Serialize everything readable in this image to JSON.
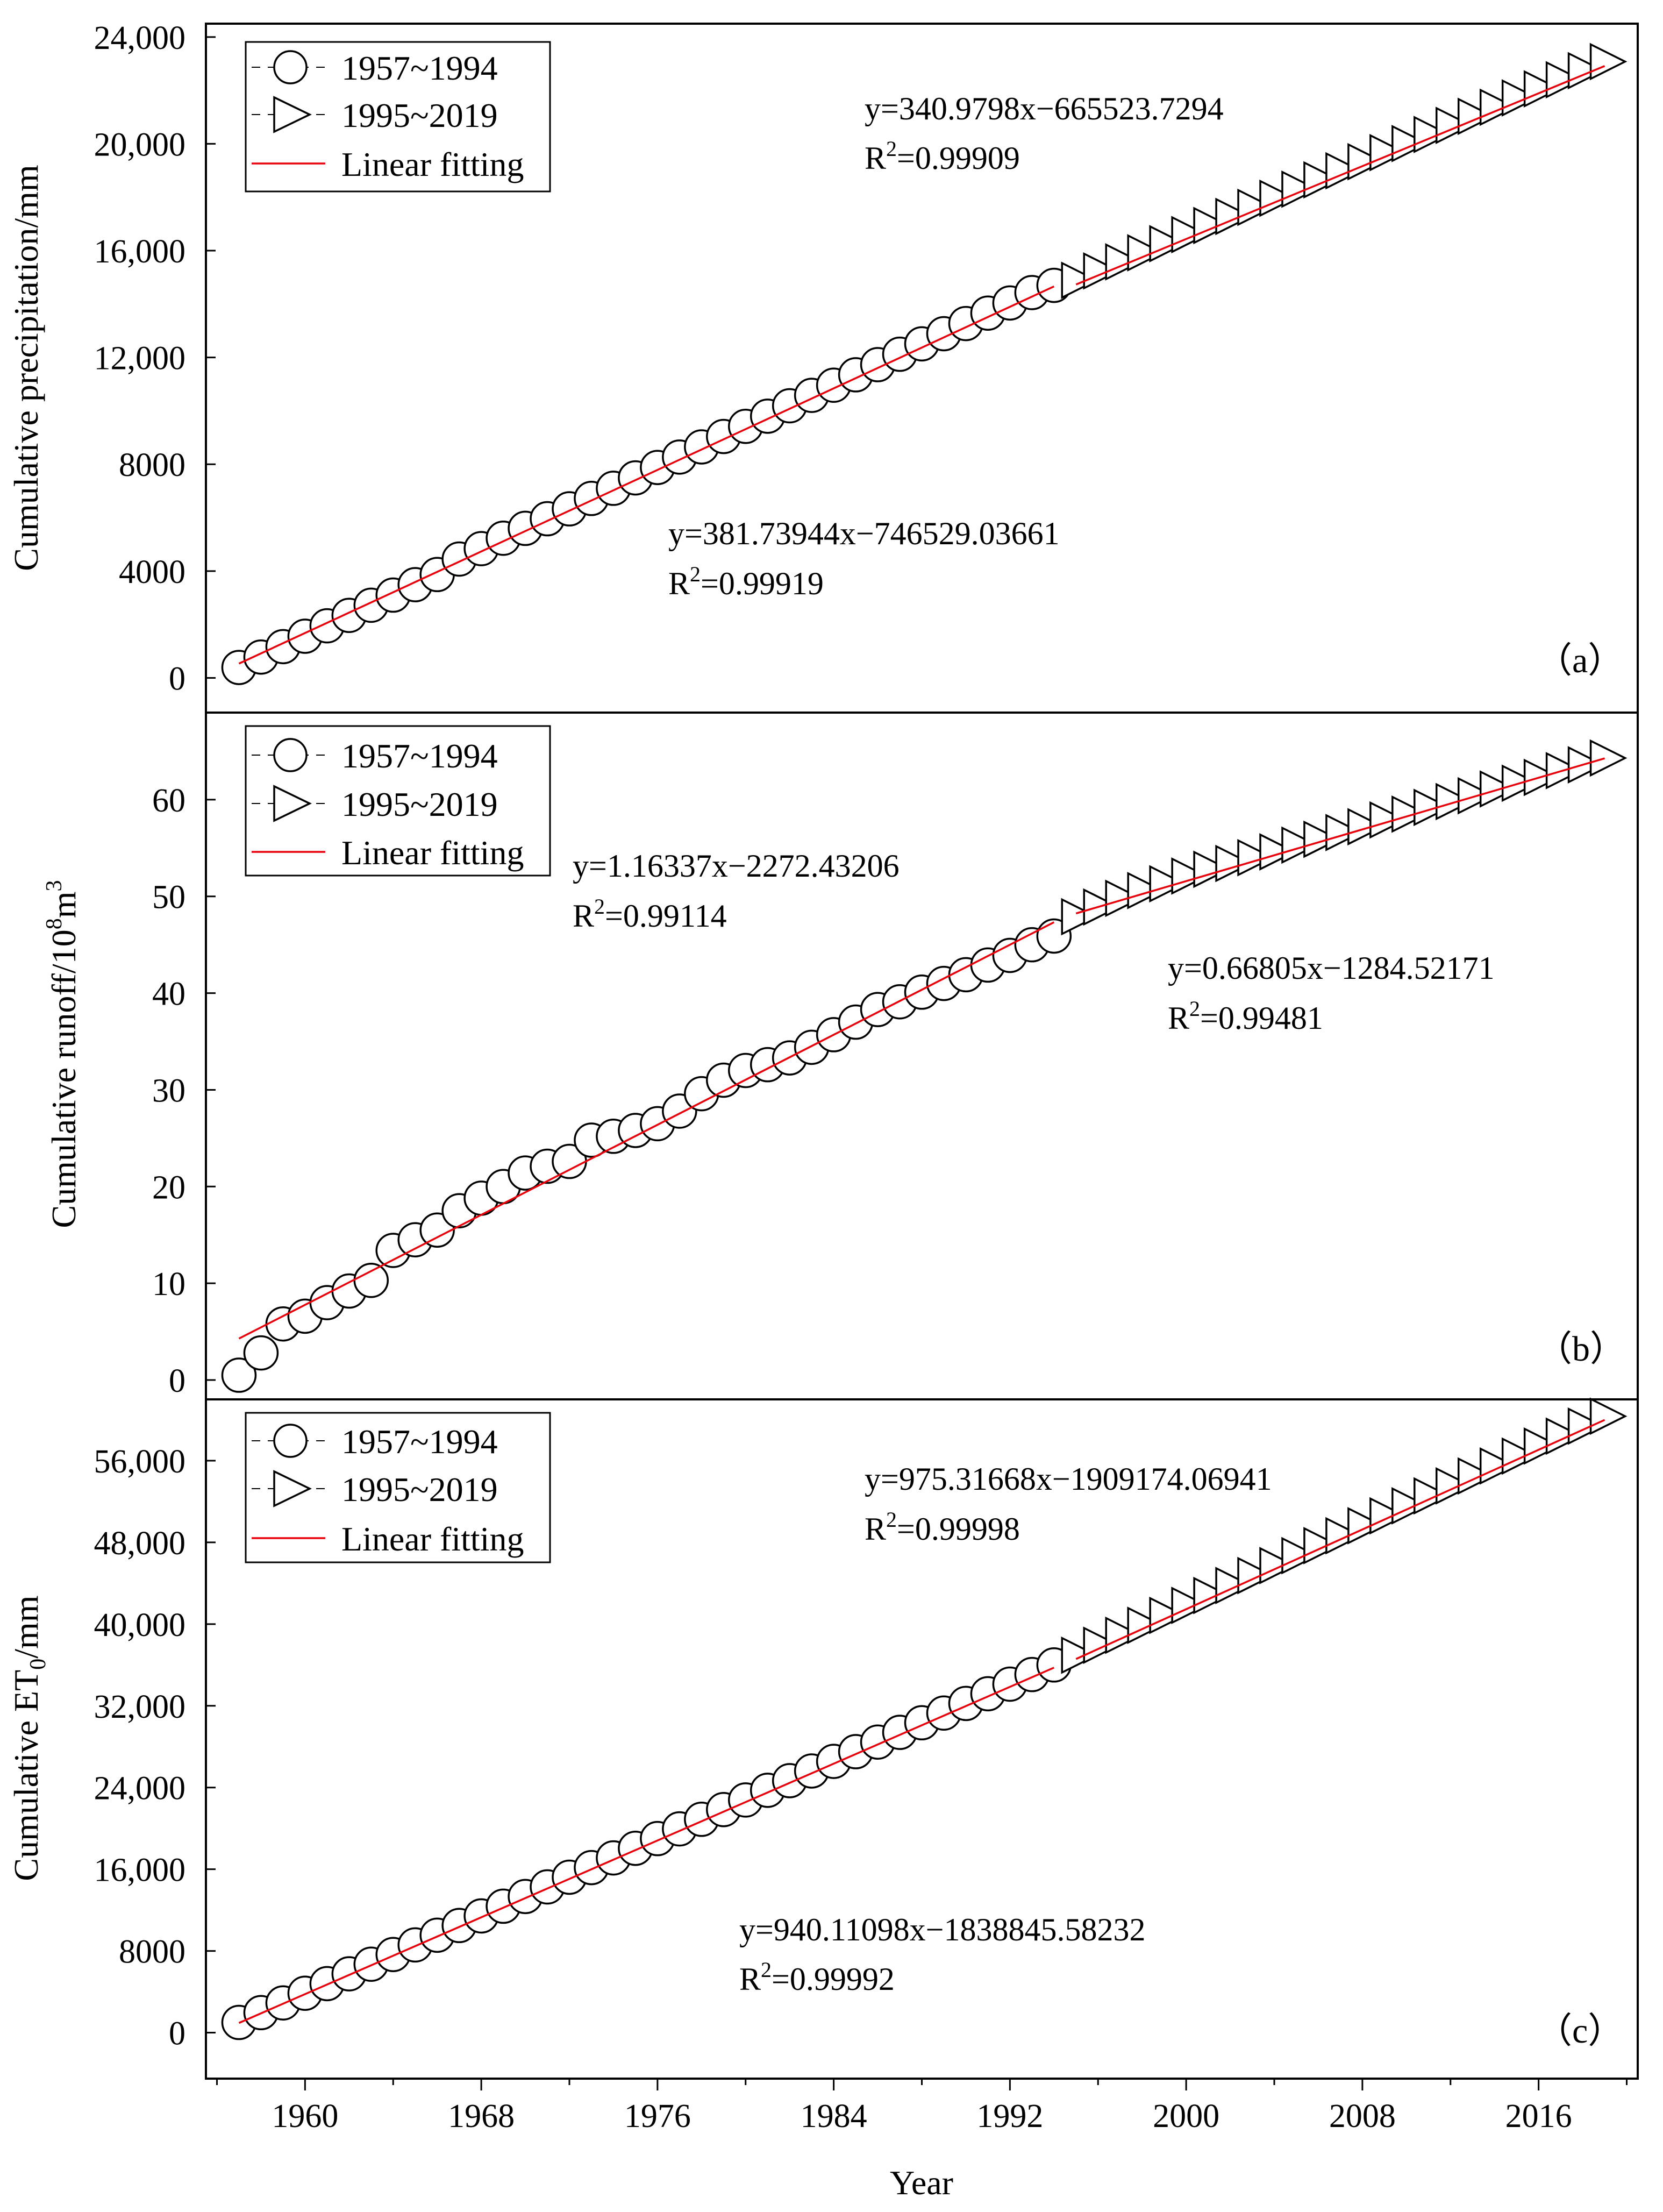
{
  "colors": {
    "fit_line": "#e8000b",
    "marker_stroke": "#000000",
    "axis": "#000000",
    "background": "#ffffff"
  },
  "chart_data": [
    {
      "type": "scatter",
      "panel_label": "（a）",
      "ylabel": "Cumulative precipitation/mm",
      "ylim": [
        -1300,
        24500
      ],
      "yticks": [
        0,
        4000,
        8000,
        12000,
        16000,
        20000,
        24000
      ],
      "ytick_labels": [
        "0",
        "4000",
        "8000",
        "12,000",
        "16,000",
        "20,000",
        "24,000"
      ],
      "series": [
        {
          "name": "1957~1994",
          "marker": "circle",
          "x_start": 1957,
          "values": [
            390,
            780,
            1170,
            1560,
            1950,
            2340,
            2720,
            3100,
            3490,
            3870,
            4450,
            4840,
            5230,
            5600,
            5960,
            6330,
            6720,
            7100,
            7490,
            7880,
            8270,
            8650,
            9040,
            9420,
            9800,
            10190,
            10580,
            10960,
            11350,
            11730,
            12120,
            12510,
            12890,
            13270,
            13660,
            14040,
            14430,
            14700
          ]
        },
        {
          "name": "1995~2019",
          "marker": "triangle-right",
          "x_start": 1995,
          "values": [
            14890,
            15240,
            15580,
            15920,
            16260,
            16600,
            16940,
            17280,
            17620,
            17960,
            18300,
            18650,
            18990,
            19330,
            19670,
            20010,
            20350,
            20690,
            21030,
            21370,
            21720,
            22060,
            22400,
            22740,
            23080
          ]
        }
      ],
      "fits": [
        {
          "segment": "1957~1994",
          "slope": 381.73944,
          "intercept": -746529.03661,
          "x_range": [
            1957,
            1994
          ],
          "equation": "y=381.73944x−746529.03661",
          "r2_prefix": "R",
          "r2_sup": "2",
          "r2_value": "=0.99919"
        },
        {
          "segment": "1995~2019",
          "slope": 340.9798,
          "intercept": -665523.7294,
          "x_range": [
            1995,
            2019
          ],
          "equation": "y=340.9798x−665523.7294",
          "r2_prefix": "R",
          "r2_sup": "2",
          "r2_value": "=0.99909"
        }
      ],
      "legend": {
        "position": "top-left",
        "entries": [
          "1957~1994",
          "1995~2019",
          "Linear fitting"
        ]
      }
    },
    {
      "type": "scatter",
      "panel_label": "（b）",
      "ylabel": "Cumulative runoff/10",
      "ylabel_sup1": "8",
      "ylabel_mid": "m",
      "ylabel_sup2": "3",
      "ylim": [
        -2,
        69
      ],
      "yticks": [
        0,
        10,
        20,
        30,
        40,
        50,
        60
      ],
      "ytick_labels": [
        "0",
        "10",
        "20",
        "30",
        "40",
        "50",
        "60"
      ],
      "series": [
        {
          "name": "1957~1994",
          "marker": "circle",
          "x_start": 1957,
          "values": [
            0.5,
            2.8,
            5.8,
            6.6,
            8.0,
            9.2,
            10.3,
            13.4,
            14.5,
            15.5,
            17.5,
            18.8,
            20.0,
            21.4,
            22.1,
            22.6,
            24.8,
            25.2,
            25.8,
            26.5,
            27.8,
            29.6,
            31.0,
            32.0,
            32.6,
            33.3,
            34.4,
            35.7,
            37.0,
            38.3,
            39.1,
            40.1,
            41.0,
            41.9,
            42.9,
            43.9,
            45.0,
            45.9
          ]
        },
        {
          "name": "1995~2019",
          "marker": "triangle-right",
          "x_start": 1995,
          "values": [
            47.9,
            48.9,
            49.8,
            50.6,
            51.3,
            52.1,
            52.8,
            53.4,
            54.0,
            54.6,
            55.3,
            55.9,
            56.6,
            57.2,
            57.9,
            58.5,
            59.2,
            59.8,
            60.4,
            61.1,
            61.7,
            62.3,
            63.0,
            63.6,
            64.3
          ]
        }
      ],
      "fits": [
        {
          "segment": "1957~1994",
          "slope": 1.16337,
          "intercept": -2272.43206,
          "x_range": [
            1957,
            1994
          ],
          "equation": "y=1.16337x−2272.43206",
          "r2_prefix": "R",
          "r2_sup": "2",
          "r2_value": "=0.99114"
        },
        {
          "segment": "1995~2019",
          "slope": 0.66805,
          "intercept": -1284.52171,
          "x_range": [
            1995,
            2019
          ],
          "equation": "y=0.66805x−1284.52171",
          "r2_prefix": "R",
          "r2_sup": "2",
          "r2_value": "=0.99481"
        }
      ],
      "legend": {
        "position": "top-left",
        "entries": [
          "1957~1994",
          "1995~2019",
          "Linear fitting"
        ]
      }
    },
    {
      "type": "scatter",
      "panel_label": "（c）",
      "ylabel": "Cumulative ET",
      "ylabel_sub": "0",
      "ylabel_tail": "/mm",
      "ylim": [
        -4500,
        62000
      ],
      "yticks": [
        0,
        8000,
        16000,
        24000,
        32000,
        40000,
        48000,
        56000
      ],
      "ytick_labels": [
        "0",
        "8000",
        "16,000",
        "24,000",
        "32,000",
        "40,000",
        "48,000",
        "56,000"
      ],
      "xlabel": "Year",
      "xlim": [
        1955.5,
        2020.5
      ],
      "xticks": [
        1960,
        1968,
        1976,
        1984,
        1992,
        2000,
        2008,
        2016
      ],
      "series": [
        {
          "name": "1957~1994",
          "marker": "circle",
          "x_start": 1957,
          "values": [
            1000,
            1960,
            2910,
            3860,
            4800,
            5760,
            6700,
            7650,
            8590,
            9540,
            10490,
            11430,
            12380,
            13330,
            14270,
            15220,
            16160,
            17110,
            18050,
            19000,
            19950,
            20890,
            21840,
            22780,
            23730,
            24670,
            25620,
            26560,
            27510,
            28450,
            29400,
            30340,
            31290,
            32230,
            33180,
            34120,
            35060,
            36000
          ]
        },
        {
          "name": "1995~2019",
          "marker": "triangle-right",
          "x_start": 1995,
          "values": [
            36950,
            37930,
            38900,
            39880,
            40850,
            41830,
            42800,
            43780,
            44750,
            45730,
            46700,
            47680,
            48650,
            49630,
            50600,
            51580,
            52550,
            53530,
            54500,
            55480,
            56450,
            57430,
            58400,
            59380,
            60350
          ]
        }
      ],
      "fits": [
        {
          "segment": "1957~1994",
          "slope": 940.11098,
          "intercept": -1838845.58232,
          "x_range": [
            1957,
            1994
          ],
          "equation": "y=940.11098x−1838845.58232",
          "r2_prefix": "R",
          "r2_sup": "2",
          "r2_value": "=0.99992"
        },
        {
          "segment": "1995~2019",
          "slope": 975.31668,
          "intercept": -1909174.06941,
          "x_range": [
            1995,
            2019
          ],
          "equation": "y=975.31668x−1909174.06941",
          "r2_prefix": "R",
          "r2_sup": "2",
          "r2_value": "=0.99998"
        }
      ],
      "legend": {
        "position": "top-left",
        "entries": [
          "1957~1994",
          "1995~2019",
          "Linear fitting"
        ]
      }
    }
  ]
}
